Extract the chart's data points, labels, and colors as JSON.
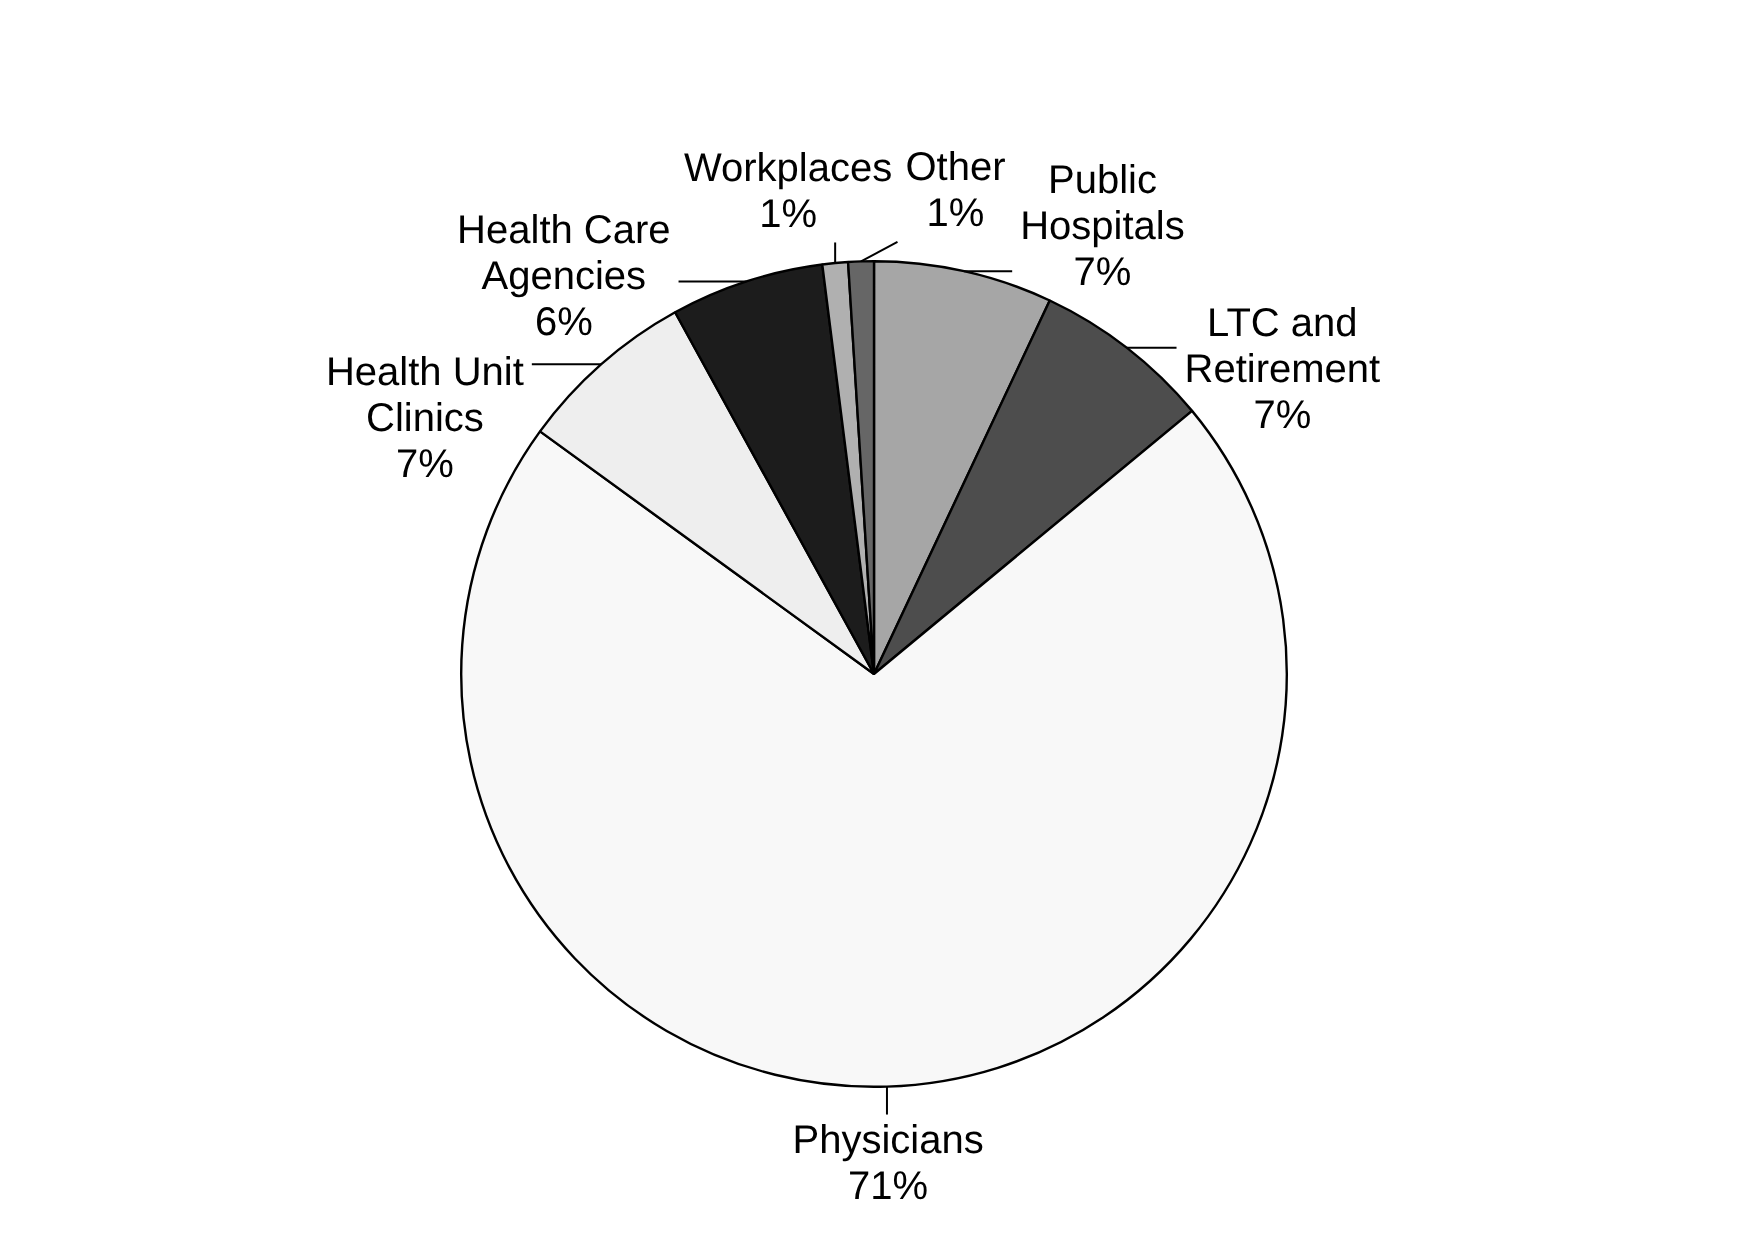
{
  "chart_data": {
    "type": "pie",
    "categories": [
      "Public Hospitals",
      "LTC and Retirement",
      "Physicians",
      "Health Unit Clinics",
      "Health Care Agencies",
      "Workplaces",
      "Other"
    ],
    "values": [
      7,
      7,
      71,
      7,
      6,
      1,
      1
    ],
    "value_labels": [
      "7%",
      "7%",
      "71%",
      "7%",
      "6%",
      "1%",
      "1%"
    ],
    "colors": [
      "#a6a6a6",
      "#4d4d4d",
      "#f8f8f8",
      "#eeeeee",
      "#1c1c1c",
      "#b0b0b0",
      "#666666"
    ],
    "legend": false
  }
}
